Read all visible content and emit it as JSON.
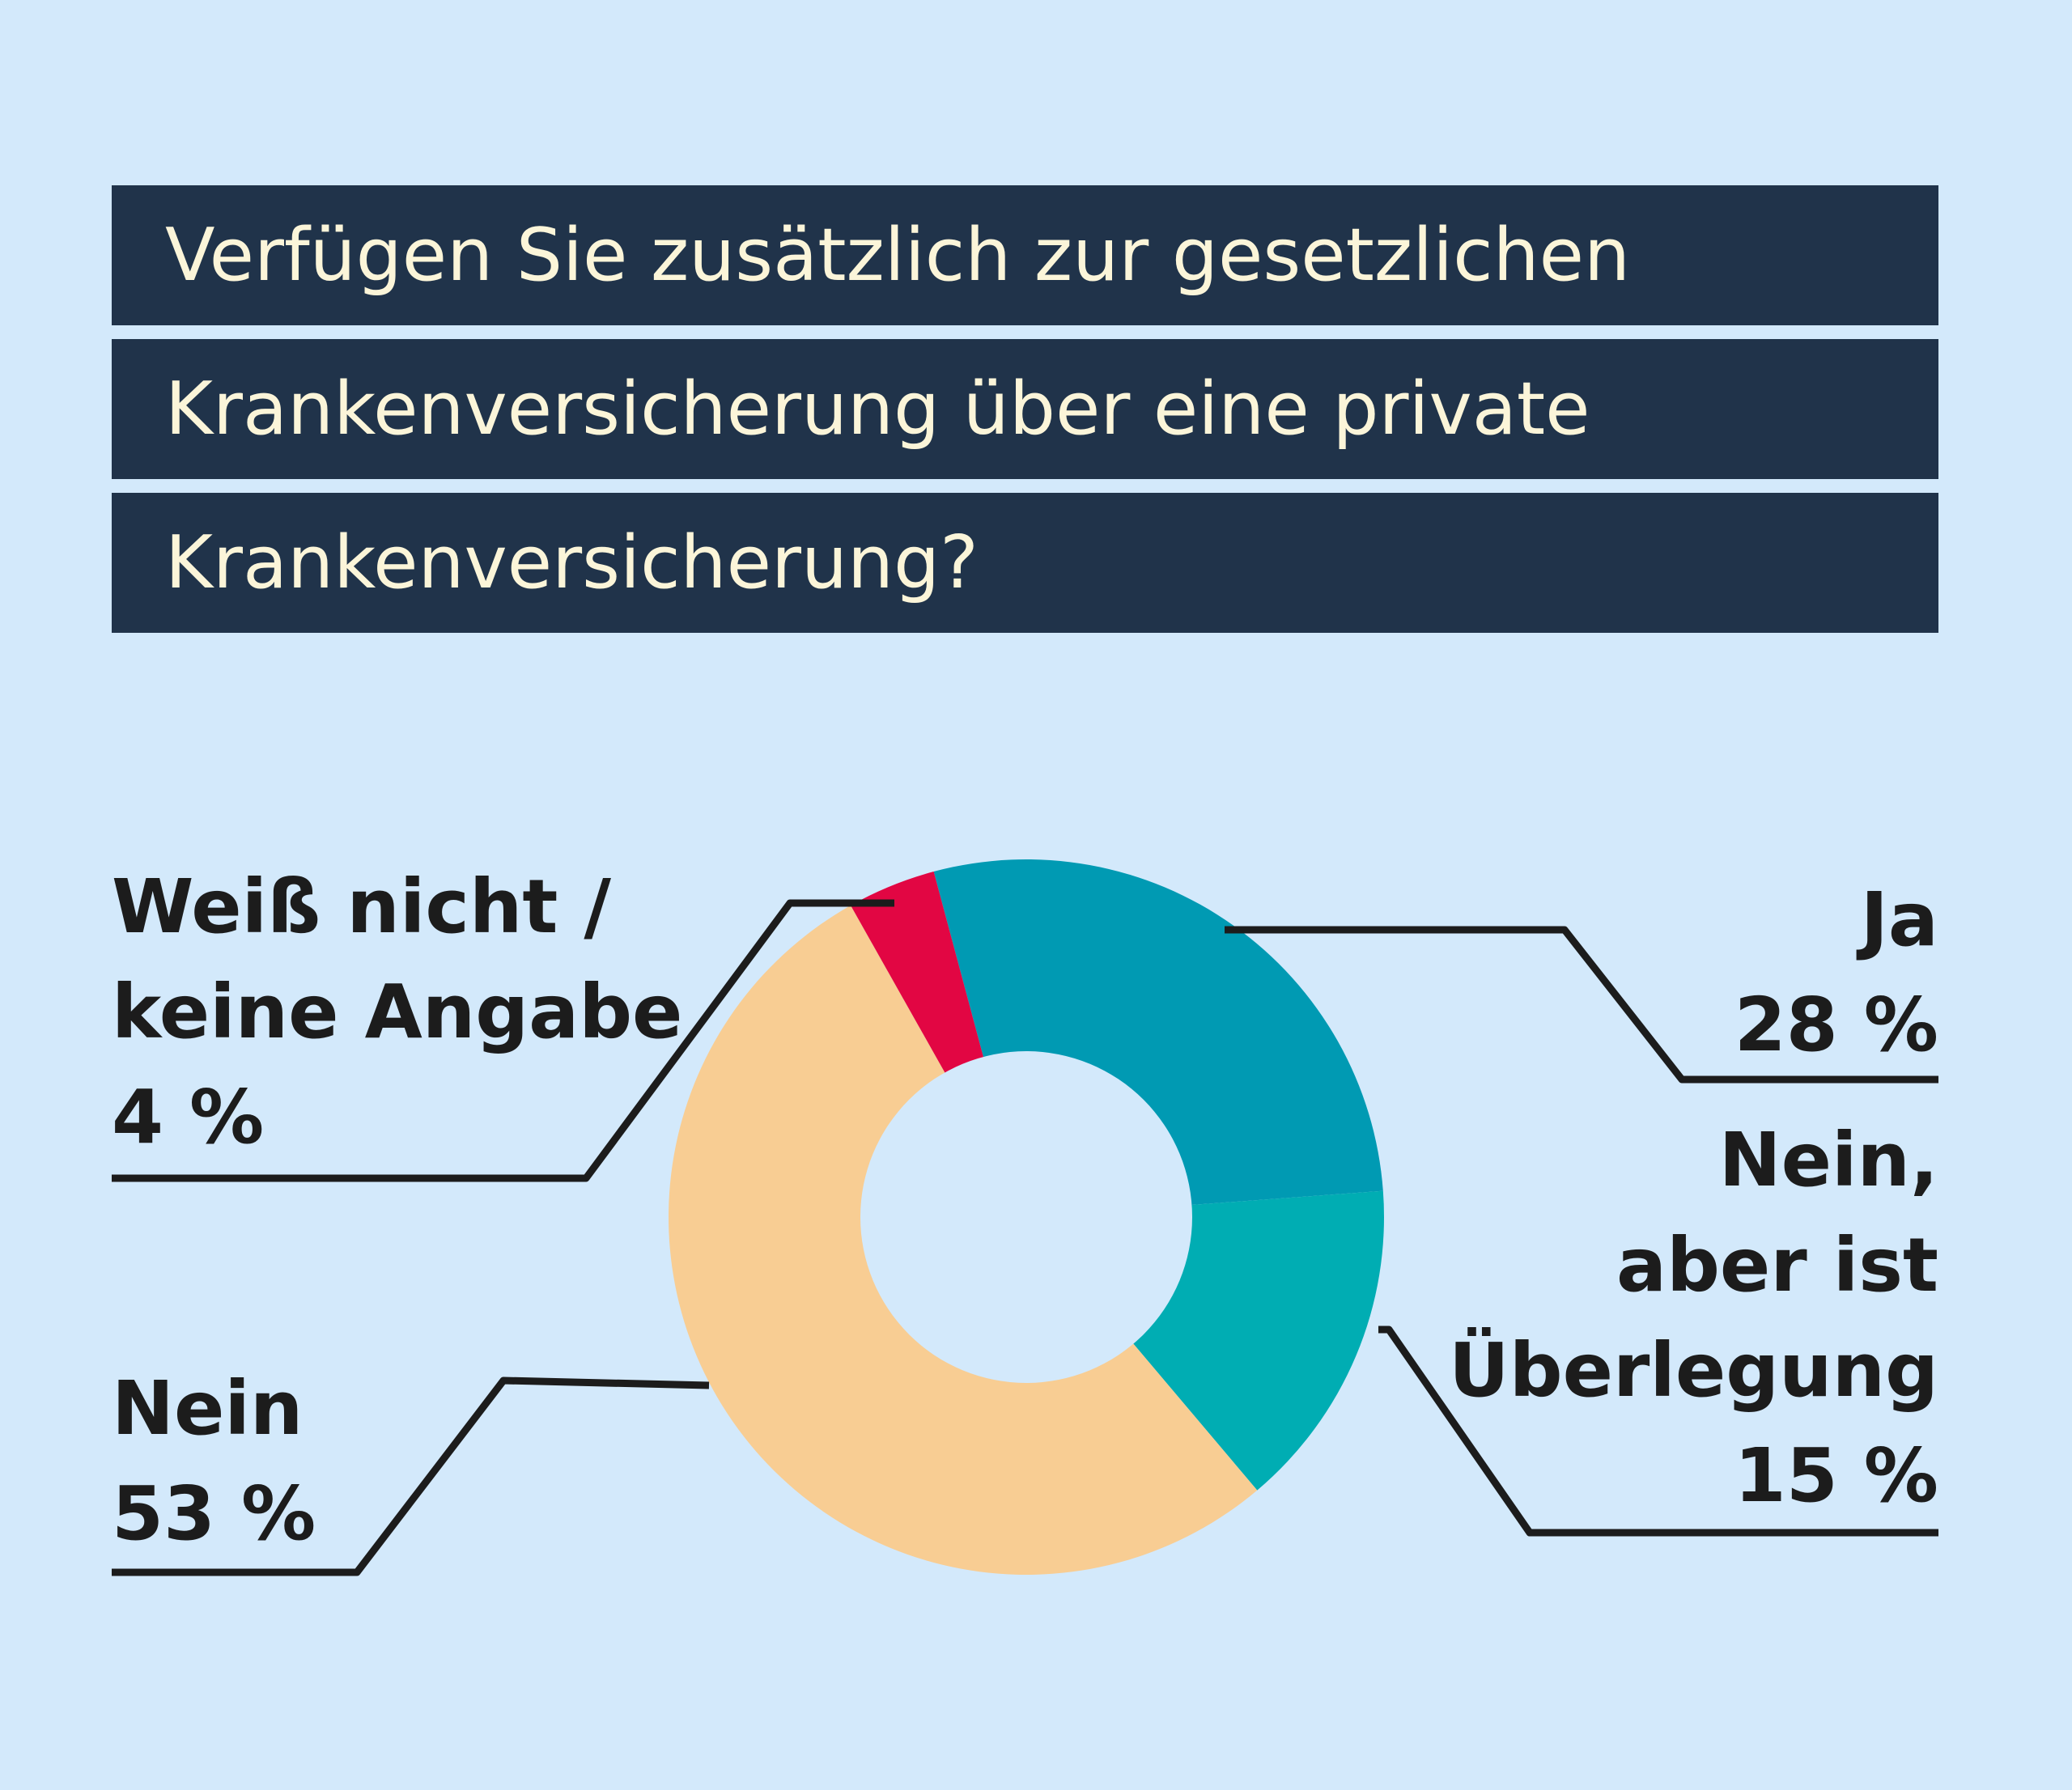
{
  "title": {
    "lines": [
      "Verfügen Sie zusätzlich zur gesetzlichen",
      "Krankenversicherung über eine private",
      "Krankenversicherung?"
    ]
  },
  "labels": {
    "ja": {
      "lines": [
        "Ja"
      ],
      "value": "28 %"
    },
    "ueberlegung": {
      "lines": [
        "Nein,",
        "aber ist",
        "Überlegung"
      ],
      "value": "15 %"
    },
    "nein": {
      "lines": [
        "Nein"
      ],
      "value": "53 %"
    },
    "weiss_nicht": {
      "lines": [
        "Weiß nicht /",
        "keine Angabe"
      ],
      "value": "4 %"
    }
  },
  "chart_data": {
    "type": "pie",
    "style": "donut",
    "title": "Verfügen Sie zusätzlich zur gesetzlichen Krankenversicherung über eine private Krankenversicherung?",
    "slices": [
      {
        "id": "ja",
        "label": "Ja",
        "value": 28,
        "color": "#009ab3"
      },
      {
        "id": "ueberlegung",
        "label": "Nein, aber ist Überlegung",
        "value": 15,
        "color": "#00adb3"
      },
      {
        "id": "nein",
        "label": "Nein",
        "value": 53,
        "color": "#f8cd93"
      },
      {
        "id": "weiss_nicht",
        "label": "Weiß nicht / keine Angabe",
        "value": 4,
        "color": "#e20643"
      }
    ],
    "start_angle_deg": -15,
    "hole_color": "#d3e9fb"
  },
  "colors": {
    "background": "#d3e9fb",
    "title_bg": "#20334a",
    "title_text": "#fbf5d9",
    "leader_line": "#1c1c1c"
  }
}
